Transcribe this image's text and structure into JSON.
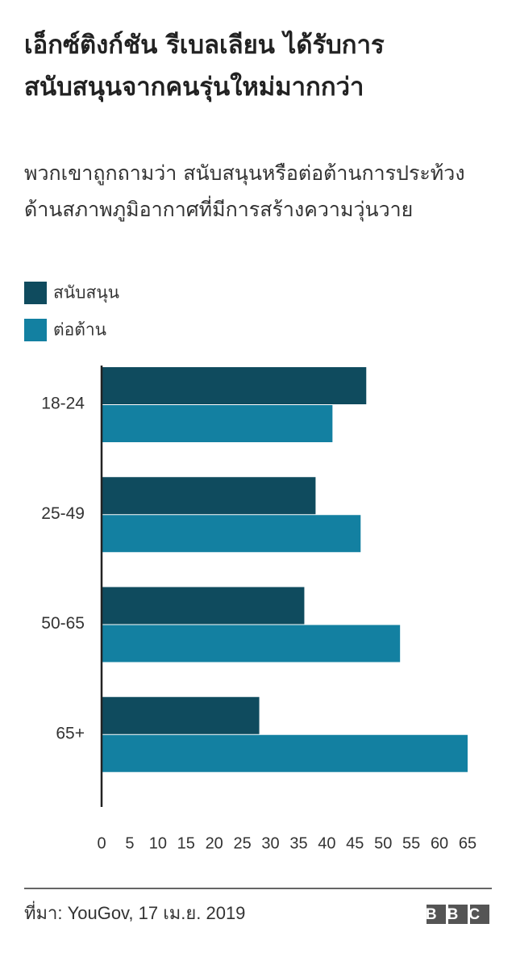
{
  "chart_data": {
    "type": "bar",
    "orientation": "horizontal",
    "title": "เอ็กซ์ติงก์ชัน รีเบลเลียน ได้รับการสนับสนุนจากคนรุ่นใหม่มากกว่า",
    "subtitle": "พวกเขาถูกถามว่า สนับสนุนหรือต่อต้านการประท้วงด้านสภาพภูมิอากาศที่มีการสร้างความวุ่นวาย",
    "categories": [
      "18-24",
      "25-49",
      "50-65",
      "65+"
    ],
    "series": [
      {
        "name": "สนับสนุน",
        "color": "#0f4b5e",
        "values": [
          47,
          38,
          36,
          28
        ]
      },
      {
        "name": "ต่อต้าน",
        "color": "#1380a1",
        "values": [
          41,
          46,
          53,
          65
        ]
      }
    ],
    "xlim": [
      0,
      65
    ],
    "xticks": [
      0,
      5,
      10,
      15,
      20,
      25,
      30,
      35,
      40,
      45,
      50,
      55,
      60,
      65
    ],
    "grid": false,
    "legend": "top-left",
    "source": "ที่มา: YouGov, 17 เม.ย. 2019",
    "logo": "BBC"
  }
}
